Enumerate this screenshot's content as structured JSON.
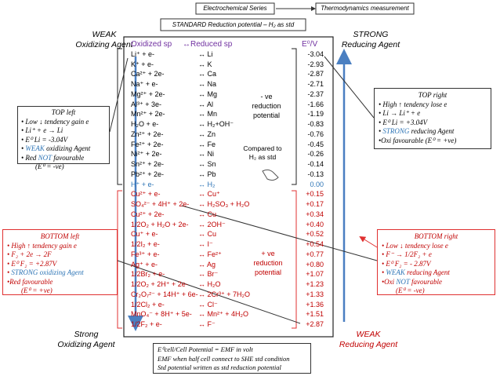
{
  "header": {
    "series": "Electrochemical Series",
    "measurement": "Thermodynamics measurement",
    "standard": "STANDARD Reduction potential – H₂ as std"
  },
  "labels": {
    "top_left": [
      "WEAK",
      "Oxidizing Agent"
    ],
    "top_right": [
      "STRONG",
      "Reducing Agent"
    ],
    "bottom_left": [
      "Strong",
      "Oxidizing Agent"
    ],
    "bottom_right": [
      "WEAK",
      "Reducing Agent"
    ]
  },
  "table": {
    "columns": [
      "Oxidized sp",
      "↔Reduced sp",
      "E⁰/V"
    ],
    "negative_rows": [
      [
        "Li⁺ + e-",
        "↔ Li",
        "-3.04"
      ],
      [
        "K⁺ + e-",
        "↔ K",
        "-2.93"
      ],
      [
        "Ca²⁺ + 2e-",
        "↔ Ca",
        "-2.87"
      ],
      [
        "Na⁺ + e-",
        "↔ Na",
        "-2.71"
      ],
      [
        "Mg²⁺ + 2e-",
        "↔ Mg",
        "-2.37"
      ],
      [
        "Al³⁺ + 3e-",
        "↔ Al",
        "-1.66"
      ],
      [
        "Mn²⁺ + 2e-",
        "↔ Mn",
        "-1.19"
      ],
      [
        "H₂O + e-",
        "↔ H₂+OH⁻",
        "-0.83"
      ],
      [
        "Zn²⁺ + 2e-",
        "↔ Zn",
        "-0.76"
      ],
      [
        "Fe²⁺ + 2e-",
        "↔ Fe",
        "-0.45"
      ],
      [
        "Ni²⁺ + 2e-",
        "↔ Ni",
        "-0.26"
      ],
      [
        "Sn²⁺ + 2e-",
        "↔ Sn",
        "-0.14"
      ],
      [
        "Pb²⁺ + 2e-",
        "↔ Pb",
        "-0.13"
      ]
    ],
    "reference_row": [
      "H⁺ + e-",
      "↔ H₂",
      "0.00"
    ],
    "positive_rows": [
      [
        "Cu²⁺ + e-",
        "↔ Cu⁺",
        "+0.15"
      ],
      [
        "SO₄²⁻ + 4H⁺ + 2e-",
        "↔ H₂SO₃ + H₂O",
        "+0.17"
      ],
      [
        "Cu²⁺ + 2e-",
        "↔ Cu",
        "+0.34"
      ],
      [
        "1/2O₂ + H₂O + 2e-",
        "↔ 2OH⁻",
        "+0.40"
      ],
      [
        "Cu⁺ + e-",
        "↔ Cu",
        "+0.52"
      ],
      [
        "1/2I₂ + e-",
        "↔ I⁻",
        "+0.54"
      ],
      [
        "Fe³⁺ + e-",
        "↔ Fe²⁺",
        "+0.77"
      ],
      [
        "Ag⁺ + e-",
        "↔ Ag",
        "+0.80"
      ],
      [
        "1/2Br₂ + e-",
        "↔ Br⁻",
        "+1.07"
      ],
      [
        "1/2O₂ + 2H⁺ + 2e-",
        "↔ H₂O",
        "+1.23"
      ],
      [
        "Cr₂O₇²⁻ + 14H⁺ + 6e-",
        "↔ 2Cr³⁺ + 7H₂O",
        "+1.33"
      ],
      [
        "1/2Cl₂ + e-",
        "↔ Cl⁻",
        "+1.36"
      ],
      [
        "MnO₄⁻ + 8H⁺ + 5e-",
        "↔ Mn²⁺ + 4H₂O",
        "+1.51"
      ],
      [
        "1/2F₂ + e-",
        "↔ F⁻",
        "+2.87"
      ]
    ]
  },
  "notes": {
    "negative": [
      "- ve",
      "reduction",
      "potential"
    ],
    "compared": [
      "Compared to",
      "H₂ as std"
    ],
    "positive": [
      "+ ve",
      "reduction",
      "potential"
    ]
  },
  "boxes": {
    "top_left": {
      "title": "TOP left",
      "lines": [
        "• Low ↓ tendency gain e",
        "• Li⁺ + e → Li",
        "• E⁰ Li = -3.04V",
        [
          "• ",
          "WEAK",
          " oxidizing Agent"
        ],
        [
          "• Red ",
          "NOT",
          " favourable"
        ],
        "(E⁰ = -ve)"
      ]
    },
    "top_right": {
      "title": "TOP right",
      "lines": [
        "• High ↑ tendency lose e",
        "• Li → Li⁺ + e",
        "• E⁰ Li = +3.04V",
        [
          "• ",
          "STRONG",
          " reducing Agent"
        ],
        "•Oxi favourable (E⁰ = +ve)"
      ]
    },
    "bottom_left": {
      "title": "BOTTOM left",
      "lines": [
        "• High ↑ tendency gain e",
        "• F₂ + 2e → 2F",
        "• E⁰ F₂ = +2.87V",
        [
          "• ",
          "STRONG oxidizing Agent"
        ],
        "•Red favourable",
        "(E⁰ = +ve)"
      ]
    },
    "bottom_right": {
      "title": "BOTTOM right",
      "lines": [
        "• Low ↓ tendency lose e",
        "• F⁻ → 1/2F₂ + e",
        "• E⁰ F₂ = - 2.87V",
        [
          "• ",
          "WEAK",
          " reducing Agent"
        ],
        [
          "•Oxi ",
          "NOT",
          " favourable"
        ],
        "(E⁰ = -ve)"
      ]
    }
  },
  "footer": [
    "E⁰cell/Cell Potential = EMF in volt",
    "EMF when half cell connect to SHE std condition",
    "Std potential written as std reduction potential"
  ]
}
